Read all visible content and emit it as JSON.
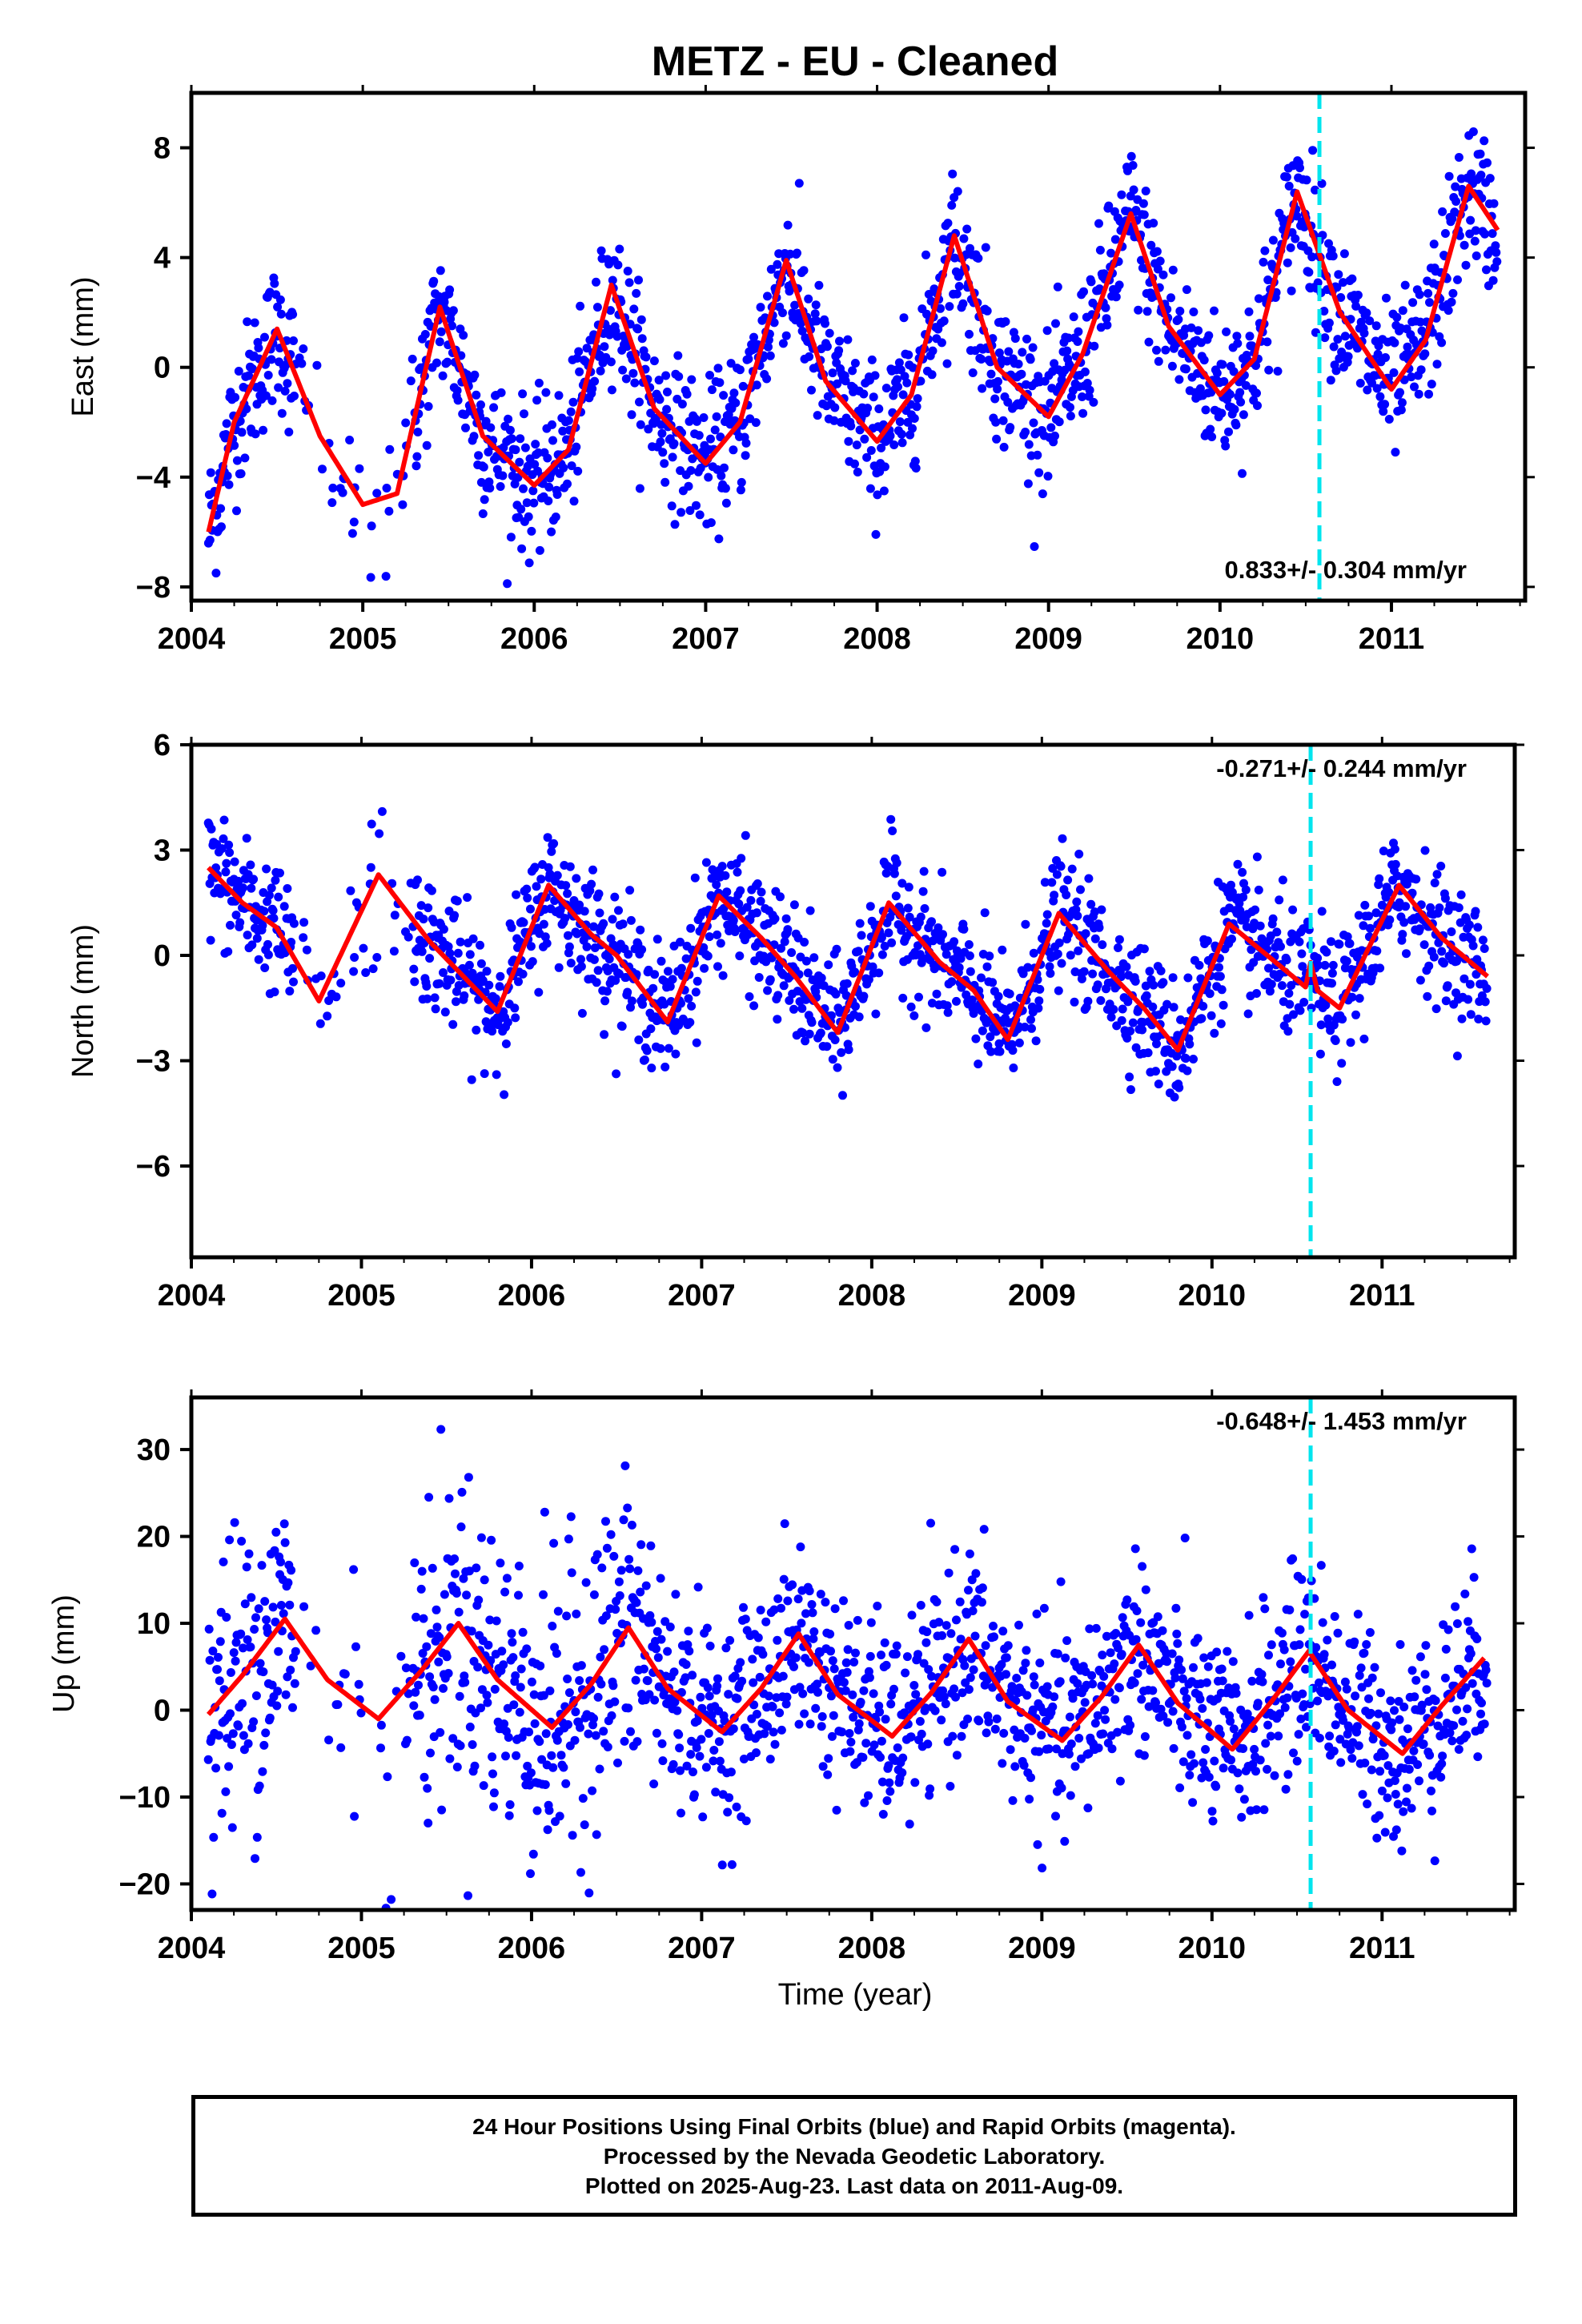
{
  "title": "METZ  - EU - Cleaned",
  "xlabel": "Time (year)",
  "colors": {
    "final": "#0000ff",
    "rapid": "#ff00ff",
    "model": "#ff0000",
    "event": "#00e5ee",
    "frame": "#000000"
  },
  "footer": [
    "24 Hour Positions Using Final Orbits (blue) and Rapid Orbits (magenta).",
    "Processed by the Nevada Geodetic Laboratory.",
    "Plotted on 2025-Aug-23. Last data on 2011-Aug-09."
  ],
  "chart_data": [
    {
      "type": "scatter",
      "ylabel": "East (mm)",
      "xlim": [
        2004.0,
        2011.78
      ],
      "ylim": [
        -8.5,
        10.0
      ],
      "xticks": [
        2004,
        2005,
        2006,
        2007,
        2008,
        2009,
        2010,
        2011
      ],
      "yticks": [
        -8,
        -4,
        0,
        4,
        8
      ],
      "rate": "0.833+/- 0.304 mm/yr",
      "rate_position": "bottom-right",
      "event_line": 2010.58,
      "model_curve": {
        "x": [
          2004.1,
          2004.25,
          2004.5,
          2004.75,
          2005.0,
          2005.2,
          2005.45,
          2005.7,
          2006.0,
          2006.2,
          2006.45,
          2006.7,
          2007.0,
          2007.2,
          2007.47,
          2007.7,
          2008.0,
          2008.2,
          2008.45,
          2008.7,
          2009.0,
          2009.2,
          2009.48,
          2009.7,
          2010.0,
          2010.2,
          2010.45,
          2010.7,
          2011.0,
          2011.2,
          2011.45,
          2011.62
        ],
        "y": [
          -6.0,
          -2.0,
          1.4,
          -2.5,
          -5.0,
          -4.6,
          2.2,
          -2.5,
          -4.3,
          -3.0,
          3.0,
          -1.5,
          -3.5,
          -2.0,
          3.9,
          -0.5,
          -2.7,
          -1.0,
          4.8,
          0.0,
          -1.8,
          0.5,
          5.6,
          1.5,
          -1.0,
          0.3,
          6.4,
          2.0,
          -0.8,
          1.0,
          6.6,
          5.0
        ]
      },
      "final_points": {
        "x_range": [
          2004.1,
          2011.62
        ],
        "y_seasonal_amplitude": 4.0,
        "y_trend_per_year": 0.833
      }
    },
    {
      "type": "scatter",
      "ylabel": "North (mm)",
      "xlim": [
        2004.0,
        2011.78
      ],
      "ylim": [
        -8.6,
        6.0
      ],
      "xticks": [
        2004,
        2005,
        2006,
        2007,
        2008,
        2009,
        2010,
        2011
      ],
      "yticks": [
        -6,
        -3,
        0,
        3,
        6
      ],
      "rate": "-0.271+/- 0.244 mm/yr",
      "rate_position": "top-right",
      "event_line": 2010.58,
      "model_curve": {
        "x": [
          2004.1,
          2004.3,
          2004.5,
          2004.75,
          2005.1,
          2005.4,
          2005.8,
          2006.1,
          2006.35,
          2006.5,
          2006.8,
          2007.1,
          2007.35,
          2007.55,
          2007.8,
          2008.1,
          2008.4,
          2008.6,
          2008.8,
          2009.1,
          2009.4,
          2009.6,
          2009.8,
          2010.1,
          2010.35,
          2010.55,
          2010.58,
          2010.62,
          2010.75,
          2011.1,
          2011.35,
          2011.62
        ],
        "y": [
          2.5,
          1.5,
          0.8,
          -1.3,
          2.3,
          0.4,
          -1.6,
          2.0,
          0.6,
          0.0,
          -1.9,
          1.7,
          0.5,
          -0.6,
          -2.2,
          1.5,
          -0.2,
          -1.0,
          -2.4,
          1.2,
          -0.5,
          -1.5,
          -2.7,
          0.9,
          -0.1,
          -0.9,
          -0.2,
          -1.0,
          -1.5,
          2.0,
          0.5,
          -0.6
        ]
      },
      "final_points": {
        "x_range": [
          2004.1,
          2011.62
        ],
        "y_seasonal_amplitude": 2.0,
        "y_trend_per_year": -0.271
      }
    },
    {
      "type": "scatter",
      "ylabel": "Up (mm)",
      "xlim": [
        2004.0,
        2011.78
      ],
      "ylim": [
        -23.0,
        36.0
      ],
      "xticks": [
        2004,
        2005,
        2006,
        2007,
        2008,
        2009,
        2010,
        2011
      ],
      "yticks": [
        -20,
        -10,
        0,
        10,
        20,
        30
      ],
      "rate": "-0.648+/- 1.453 mm/yr",
      "rate_position": "top-right",
      "event_line": 2010.58,
      "model_curve": {
        "x": [
          2004.1,
          2004.3,
          2004.55,
          2004.8,
          2005.1,
          2005.35,
          2005.57,
          2005.8,
          2006.12,
          2006.35,
          2006.57,
          2006.8,
          2007.12,
          2007.35,
          2007.57,
          2007.8,
          2008.12,
          2008.35,
          2008.57,
          2008.8,
          2009.12,
          2009.35,
          2009.57,
          2009.8,
          2010.12,
          2010.35,
          2010.57,
          2010.8,
          2011.12,
          2011.35,
          2011.6
        ],
        "y": [
          -0.5,
          4.0,
          10.5,
          3.5,
          -1.0,
          4.5,
          10.0,
          3.5,
          -2.0,
          3.0,
          9.5,
          2.5,
          -2.5,
          2.5,
          8.8,
          1.8,
          -3.0,
          2.0,
          8.2,
          1.0,
          -3.5,
          1.5,
          7.5,
          0.8,
          -4.5,
          1.0,
          6.8,
          0.0,
          -5.0,
          0.5,
          6.0
        ]
      },
      "final_points": {
        "x_range": [
          2004.1,
          2011.62
        ],
        "y_seasonal_amplitude": 6.0,
        "y_trend_per_year": -0.648
      }
    }
  ]
}
